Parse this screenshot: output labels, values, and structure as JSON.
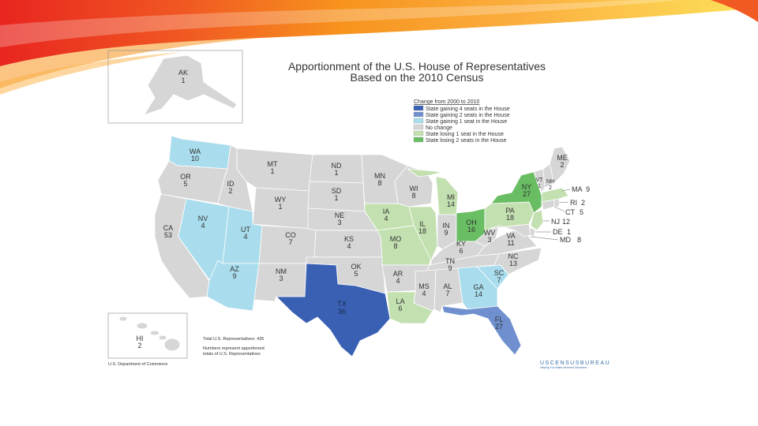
{
  "title": {
    "line1": "Apportionment of the U.S. House of Representatives",
    "line2": "Based on the 2010 Census"
  },
  "colors": {
    "gain4": "#3a60b4",
    "gain2": "#6f8fcf",
    "gain1": "#a9dcec",
    "nochange": "#d6d6d6",
    "lose1": "#c3e0b0",
    "lose2": "#69bd63",
    "border": "#ffffff"
  },
  "legend": {
    "heading": "Change from 2000 to 2010",
    "items": [
      {
        "cat": "gain4",
        "label": "State gaining 4 seats in the House"
      },
      {
        "cat": "gain2",
        "label": "State gaining 2 seats in the House"
      },
      {
        "cat": "gain1",
        "label": "State gaining 1 seat in the House"
      },
      {
        "cat": "nochange",
        "label": "No change"
      },
      {
        "cat": "lose1",
        "label": "State losing 1 seat in the House"
      },
      {
        "cat": "lose2",
        "label": "State losing 2 seats in the House"
      }
    ]
  },
  "notes": {
    "total": "Total U.S. Representatives: 435",
    "numbers_line1": "Numbers represent apportioned",
    "numbers_line2": "totals of U.S. Representatives"
  },
  "credit": "U.S. Department of Commerce",
  "brand": {
    "name": "USCENSUSBUREAU",
    "tagline": "Helping You Make Informed Decisions"
  },
  "map_data": {
    "states": [
      {
        "abbr": "AK",
        "seats": "1",
        "cat": "nochange"
      },
      {
        "abbr": "HI",
        "seats": "2",
        "cat": "nochange"
      },
      {
        "abbr": "WA",
        "seats": "10",
        "cat": "gain1"
      },
      {
        "abbr": "OR",
        "seats": "5",
        "cat": "nochange"
      },
      {
        "abbr": "CA",
        "seats": "53",
        "cat": "nochange"
      },
      {
        "abbr": "NV",
        "seats": "4",
        "cat": "gain1"
      },
      {
        "abbr": "ID",
        "seats": "2",
        "cat": "nochange"
      },
      {
        "abbr": "MT",
        "seats": "1",
        "cat": "nochange"
      },
      {
        "abbr": "WY",
        "seats": "1",
        "cat": "nochange"
      },
      {
        "abbr": "UT",
        "seats": "4",
        "cat": "gain1"
      },
      {
        "abbr": "AZ",
        "seats": "9",
        "cat": "gain1"
      },
      {
        "abbr": "CO",
        "seats": "7",
        "cat": "nochange"
      },
      {
        "abbr": "NM",
        "seats": "3",
        "cat": "nochange"
      },
      {
        "abbr": "ND",
        "seats": "1",
        "cat": "nochange"
      },
      {
        "abbr": "SD",
        "seats": "1",
        "cat": "nochange"
      },
      {
        "abbr": "NE",
        "seats": "3",
        "cat": "nochange"
      },
      {
        "abbr": "KS",
        "seats": "4",
        "cat": "nochange"
      },
      {
        "abbr": "OK",
        "seats": "5",
        "cat": "nochange"
      },
      {
        "abbr": "TX",
        "seats": "36",
        "cat": "gain4"
      },
      {
        "abbr": "MN",
        "seats": "8",
        "cat": "nochange"
      },
      {
        "abbr": "IA",
        "seats": "4",
        "cat": "lose1"
      },
      {
        "abbr": "MO",
        "seats": "8",
        "cat": "lose1"
      },
      {
        "abbr": "AR",
        "seats": "4",
        "cat": "nochange"
      },
      {
        "abbr": "LA",
        "seats": "6",
        "cat": "lose1"
      },
      {
        "abbr": "WI",
        "seats": "8",
        "cat": "nochange"
      },
      {
        "abbr": "IL",
        "seats": "18",
        "cat": "lose1"
      },
      {
        "abbr": "MI",
        "seats": "14",
        "cat": "lose1"
      },
      {
        "abbr": "IN",
        "seats": "9",
        "cat": "nochange"
      },
      {
        "abbr": "OH",
        "seats": "16",
        "cat": "lose2"
      },
      {
        "abbr": "KY",
        "seats": "6",
        "cat": "nochange"
      },
      {
        "abbr": "TN",
        "seats": "9",
        "cat": "nochange"
      },
      {
        "abbr": "MS",
        "seats": "4",
        "cat": "nochange"
      },
      {
        "abbr": "AL",
        "seats": "7",
        "cat": "nochange"
      },
      {
        "abbr": "GA",
        "seats": "14",
        "cat": "gain1"
      },
      {
        "abbr": "FL",
        "seats": "27",
        "cat": "gain2"
      },
      {
        "abbr": "SC",
        "seats": "7",
        "cat": "gain1"
      },
      {
        "abbr": "NC",
        "seats": "13",
        "cat": "nochange"
      },
      {
        "abbr": "VA",
        "seats": "11",
        "cat": "nochange"
      },
      {
        "abbr": "WV",
        "seats": "3",
        "cat": "nochange"
      },
      {
        "abbr": "PA",
        "seats": "18",
        "cat": "lose1"
      },
      {
        "abbr": "NY",
        "seats": "27",
        "cat": "lose2"
      },
      {
        "abbr": "VT",
        "seats": "1",
        "cat": "nochange"
      },
      {
        "abbr": "NH",
        "seats": "2",
        "cat": "nochange"
      },
      {
        "abbr": "ME",
        "seats": "2",
        "cat": "nochange"
      },
      {
        "abbr": "MA",
        "seats": "9",
        "cat": "lose1"
      },
      {
        "abbr": "RI",
        "seats": "2",
        "cat": "nochange"
      },
      {
        "abbr": "CT",
        "seats": "5",
        "cat": "nochange"
      },
      {
        "abbr": "NJ",
        "seats": "12",
        "cat": "lose1"
      },
      {
        "abbr": "DE",
        "seats": "1",
        "cat": "nochange"
      },
      {
        "abbr": "MD",
        "seats": "8",
        "cat": "nochange"
      }
    ]
  }
}
